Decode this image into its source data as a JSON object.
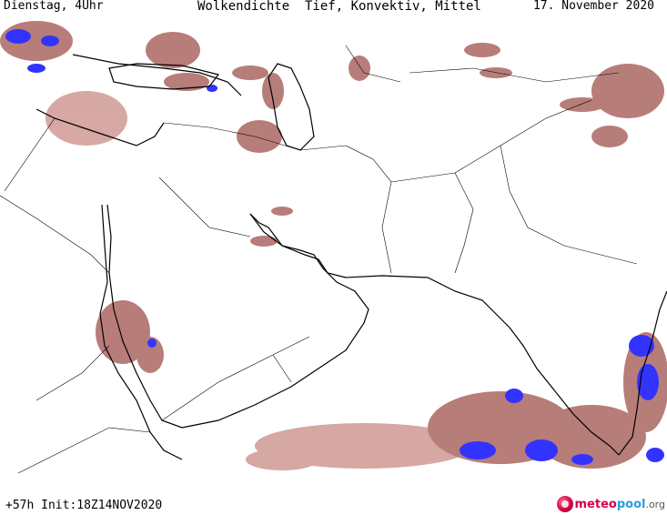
{
  "header": {
    "weekday_time": "Dienstag, 4Uhr",
    "title": "Wolkendichte  Tief, Konvektiv, Mittel",
    "date": "17. November 2020"
  },
  "footer": {
    "run_info": "+57h Init:18Z14NOV2020",
    "logo_part1": "meteo",
    "logo_part2": "pool",
    "logo_part3": ".org"
  },
  "colors": {
    "background": "#ffffff",
    "border": "#000000",
    "cloud_low": "#a0524d",
    "cloud_mid": "#c98b86",
    "cloud_dense": "#3333ff"
  }
}
